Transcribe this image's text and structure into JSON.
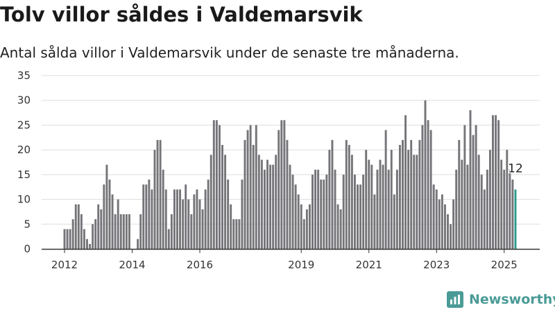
{
  "title": "Tolv villor såldes i Valdemarsvik",
  "subtitle": "Antal sålda villor i Valdemarsvik under de senaste tre månaderna.",
  "brand": "Newsworthy",
  "colors": {
    "bar": "#757478",
    "highlight": "#2a9d8f",
    "grid": "#dddddd",
    "brand": "#4a9b96"
  },
  "chart_data": {
    "type": "bar",
    "title": "",
    "xlabel": "",
    "ylabel": "",
    "ylim": [
      0,
      35
    ],
    "yticks": [
      "0",
      "5",
      "10",
      "15",
      "20",
      "25",
      "30",
      "35"
    ],
    "xticks": [
      {
        "label": "2012",
        "index": 0
      },
      {
        "label": "2014",
        "index": 24
      },
      {
        "label": "2016",
        "index": 48
      },
      {
        "label": "2019",
        "index": 84
      },
      {
        "label": "2021",
        "index": 108
      },
      {
        "label": "2023",
        "index": 132
      },
      {
        "label": "2025",
        "index": 156
      }
    ],
    "last_label": "12",
    "values": [
      4,
      4,
      4,
      6,
      9,
      9,
      7,
      4,
      2,
      1,
      5,
      6,
      9,
      8,
      13,
      17,
      14,
      11,
      7,
      10,
      7,
      7,
      7,
      7,
      0,
      0,
      2,
      7,
      13,
      13,
      14,
      12,
      20,
      22,
      22,
      16,
      12,
      4,
      7,
      12,
      12,
      12,
      10,
      13,
      10,
      7,
      11,
      12,
      10,
      8,
      12,
      14,
      19,
      26,
      26,
      25,
      21,
      19,
      14,
      9,
      6,
      6,
      6,
      14,
      22,
      24,
      25,
      21,
      25,
      19,
      18,
      16,
      18,
      17,
      17,
      19,
      24,
      26,
      26,
      22,
      17,
      15,
      13,
      11,
      9,
      6,
      8,
      9,
      15,
      16,
      16,
      14,
      14,
      15,
      20,
      22,
      16,
      9,
      8,
      15,
      22,
      21,
      19,
      15,
      13,
      13,
      15,
      20,
      18,
      17,
      11,
      16,
      18,
      17,
      24,
      16,
      20,
      11,
      16,
      21,
      22,
      27,
      20,
      22,
      19,
      19,
      22,
      25,
      30,
      26,
      24,
      13,
      12,
      10,
      11,
      9,
      7,
      5,
      10,
      16,
      22,
      18,
      25,
      17,
      28,
      23,
      25,
      19,
      15,
      12,
      16,
      20,
      27,
      27,
      26,
      18,
      16,
      20,
      16,
      14,
      12
    ]
  }
}
